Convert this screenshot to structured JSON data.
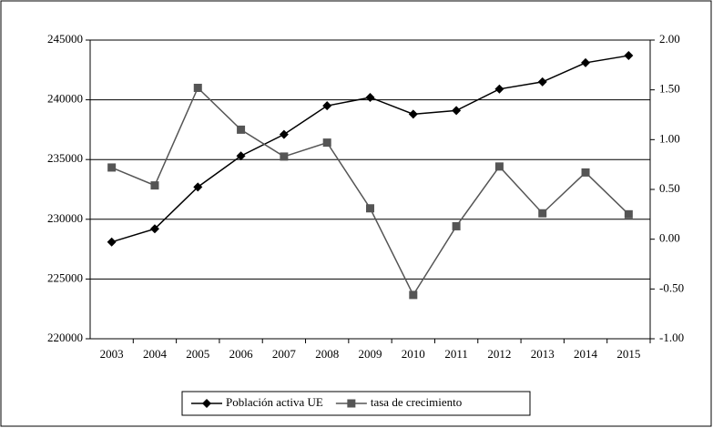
{
  "chart_data": {
    "type": "line",
    "categories": [
      "2003",
      "2004",
      "2005",
      "2006",
      "2007",
      "2008",
      "2009",
      "2010",
      "2011",
      "2012",
      "2013",
      "2014",
      "2015"
    ],
    "series": [
      {
        "name": "Población activa UE",
        "color": "#000000",
        "marker": "diamond",
        "values": [
          228100,
          229200,
          232700,
          235300,
          237100,
          239500,
          240200,
          238800,
          239100,
          240900,
          241500,
          243100,
          243700
        ]
      },
      {
        "name": "tasa de crecimiento",
        "color": "#555555",
        "marker": "square",
        "axis": "y2",
        "values": [
          0.72,
          0.54,
          1.52,
          1.1,
          0.83,
          0.97,
          0.31,
          -0.56,
          0.13,
          0.73,
          0.26,
          0.67,
          0.25
        ]
      }
    ],
    "ylim": [
      220000,
      245000
    ],
    "yticks": [
      220000,
      225000,
      230000,
      235000,
      240000,
      245000
    ],
    "y2lim": [
      -1,
      2
    ],
    "y2ticks": [
      {
        "value": -1,
        "label": "-1.00"
      },
      {
        "value": -0.5,
        "label": "-0.50"
      },
      {
        "value": 0,
        "label": "0.00"
      },
      {
        "value": 0.5,
        "label": "0.50"
      },
      {
        "value": 1,
        "label": "1.00"
      },
      {
        "value": 1.5,
        "label": "1.50"
      },
      {
        "value": 2,
        "label": "2.00"
      }
    ],
    "grid": true,
    "legend": "bottom"
  }
}
